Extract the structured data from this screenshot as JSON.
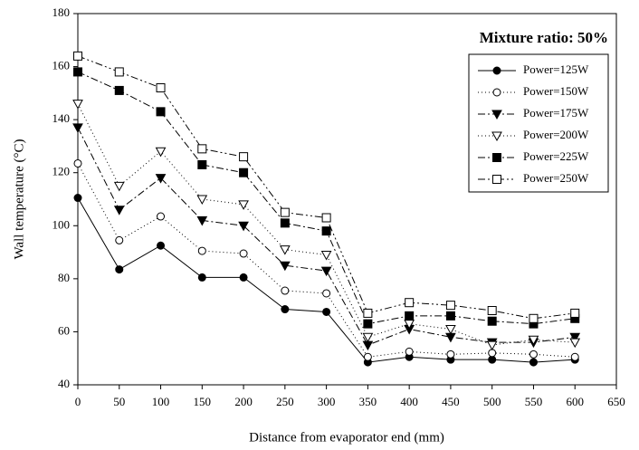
{
  "chart_data": {
    "type": "line",
    "x_label": "Distance from evaporator end (mm)",
    "y_label": "Wall temperature (°C)",
    "annotation": "Mixture ratio: 50%",
    "x": [
      0,
      50,
      100,
      150,
      200,
      250,
      300,
      350,
      400,
      450,
      500,
      550,
      600
    ],
    "xlim": [
      0,
      650
    ],
    "xticks": [
      0,
      50,
      100,
      150,
      200,
      250,
      300,
      350,
      400,
      450,
      500,
      550,
      600,
      650
    ],
    "ylim": [
      40,
      180
    ],
    "yticks": [
      40,
      60,
      80,
      100,
      120,
      140,
      160,
      180
    ],
    "legend": "upper right",
    "series": [
      {
        "name": "Power=125W",
        "color": "#000000",
        "marker": "circle",
        "filled": true,
        "dash": "",
        "values": [
          110.5,
          83.5,
          92.5,
          80.5,
          80.5,
          68.5,
          67.5,
          48.5,
          50.5,
          49.5,
          49.5,
          48.5,
          49.5
        ]
      },
      {
        "name": "Power=150W",
        "color": "#000000",
        "marker": "circle",
        "filled": false,
        "dash": "1 3",
        "values": [
          123.5,
          94.5,
          103.5,
          90.5,
          89.5,
          75.5,
          74.5,
          50.5,
          52.5,
          51.5,
          52,
          51.5,
          50.5
        ]
      },
      {
        "name": "Power=175W",
        "color": "#000000",
        "marker": "triangle-down",
        "filled": true,
        "dash": "8 3 2 3",
        "values": [
          137,
          106,
          118,
          102,
          100,
          85,
          83,
          55,
          61,
          58,
          56,
          56,
          58
        ]
      },
      {
        "name": "Power=200W",
        "color": "#000000",
        "marker": "triangle-down",
        "filled": false,
        "dash": "1 3",
        "values": [
          146,
          115,
          128,
          110,
          108,
          91,
          89,
          58,
          63,
          61,
          55,
          57,
          56
        ]
      },
      {
        "name": "Power=225W",
        "color": "#000000",
        "marker": "square",
        "filled": true,
        "dash": "8 3 2 3",
        "values": [
          158,
          151,
          143,
          123,
          120,
          101,
          98,
          63,
          66,
          66,
          64,
          63,
          65
        ]
      },
      {
        "name": "Power=250W",
        "color": "#000000",
        "marker": "square",
        "filled": false,
        "dash": "8 3 2 3 2 3",
        "values": [
          164,
          158,
          152,
          129,
          126,
          105,
          103,
          67,
          71,
          70,
          68,
          65,
          67
        ]
      }
    ]
  }
}
